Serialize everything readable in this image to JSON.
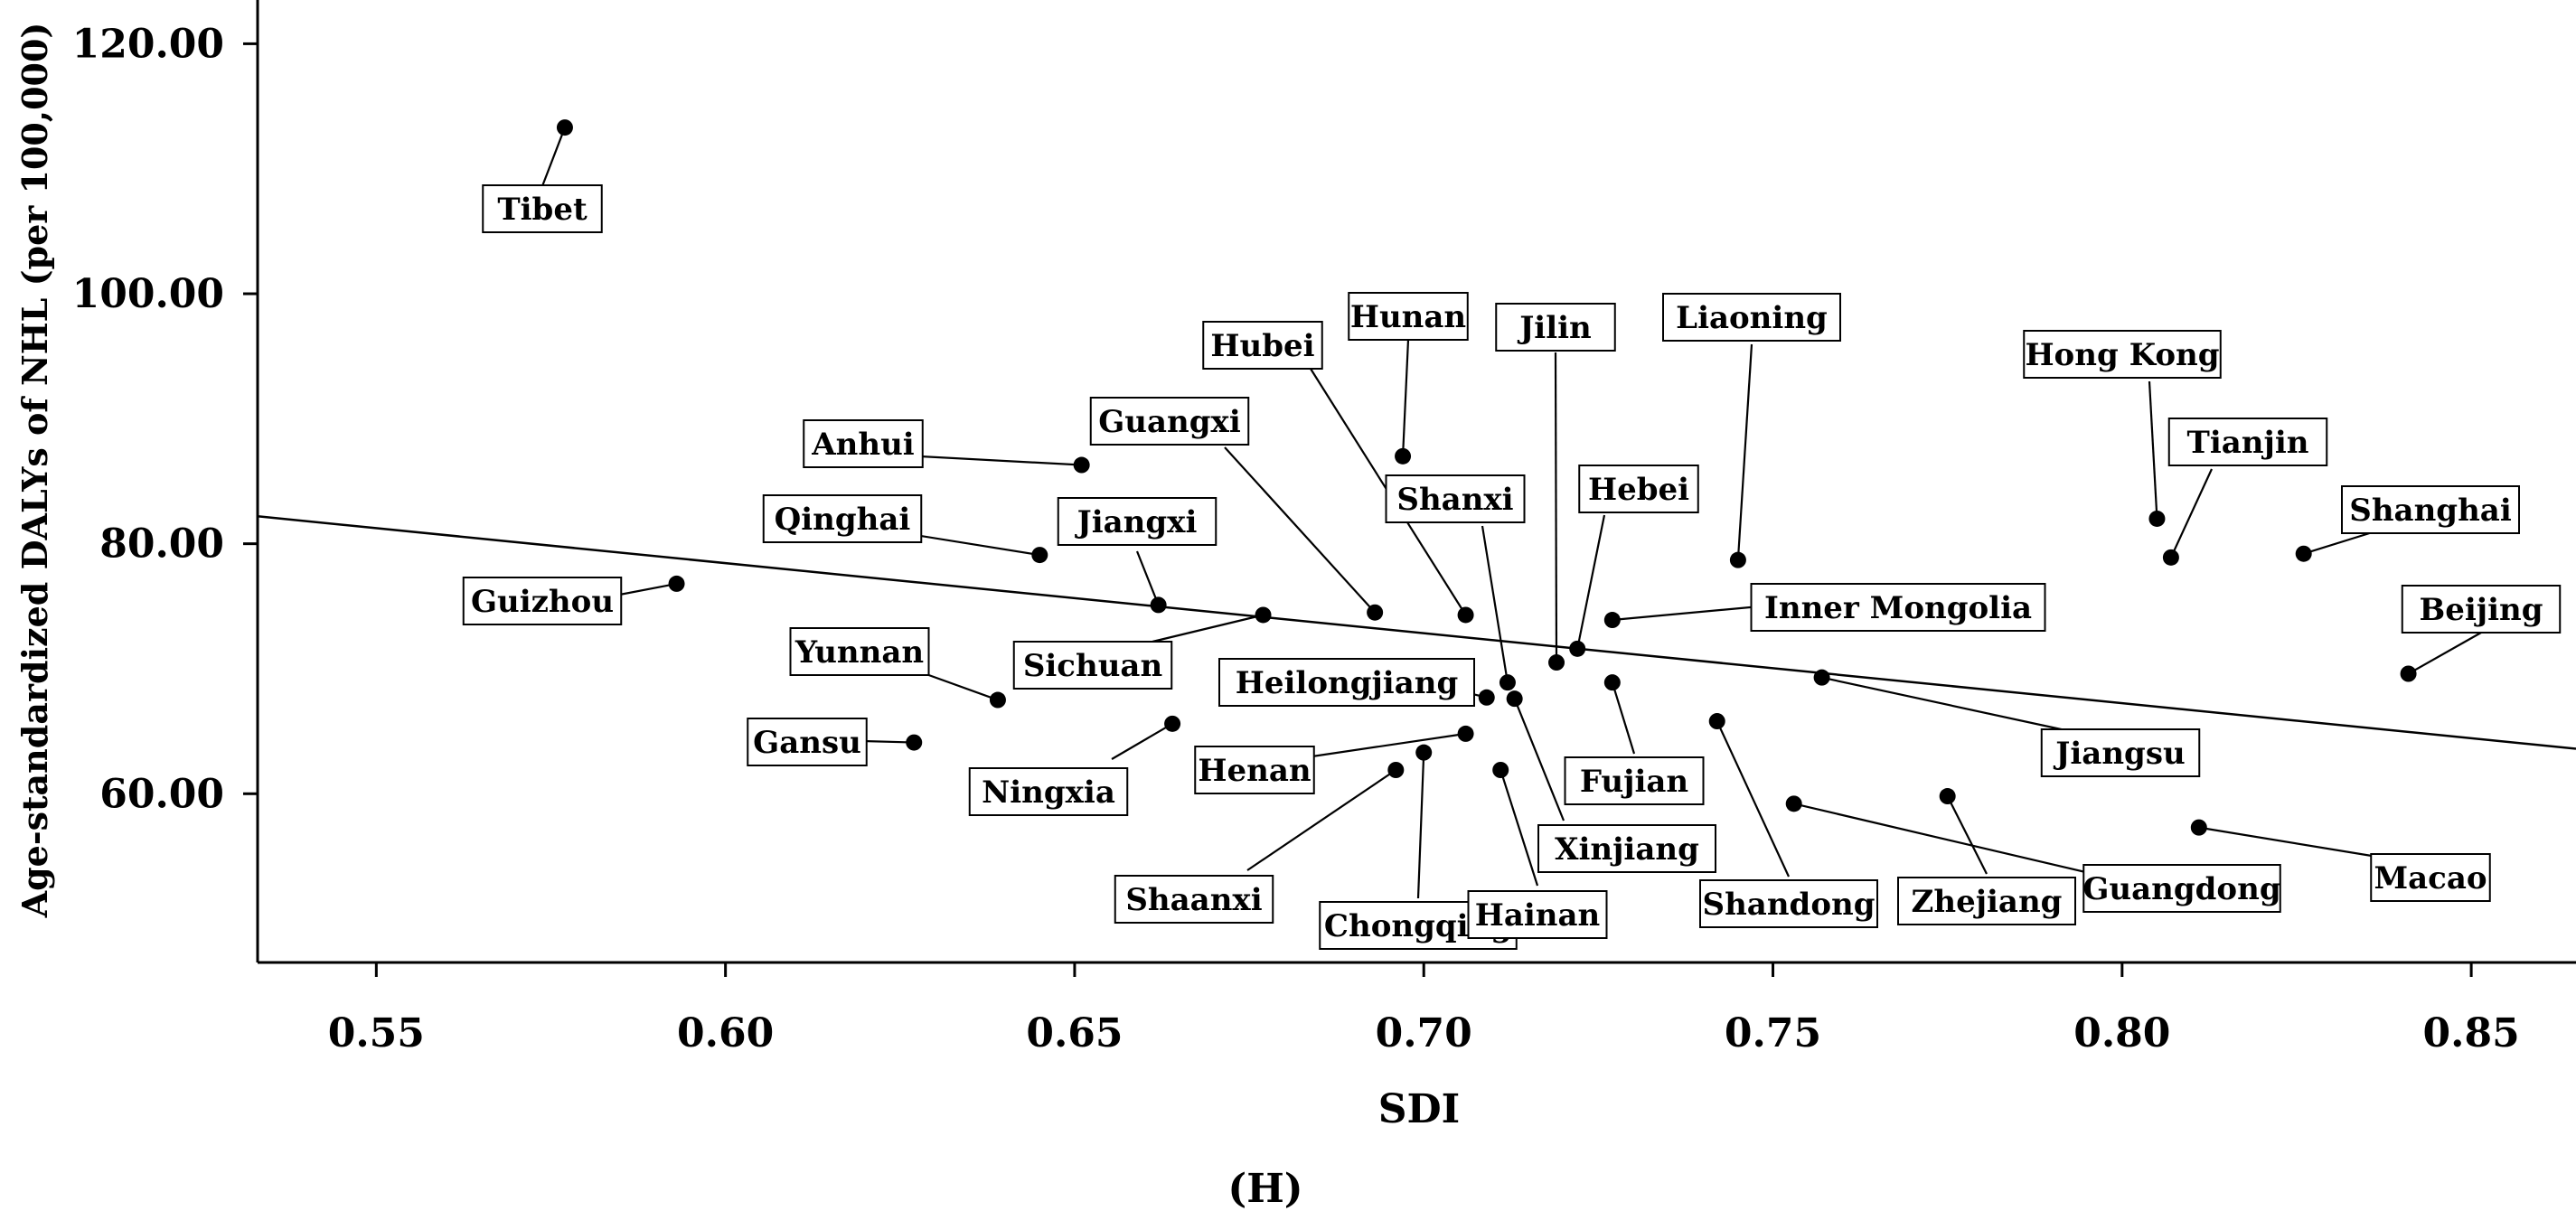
{
  "chart_data": {
    "type": "scatter",
    "panel_label": "(H)",
    "xlabel": "SDI",
    "ylabel": "Age-standardized DALYs of NHL (per 100,000)",
    "xlim": [
      0.533,
      0.865
    ],
    "ylim": [
      46.5,
      123.5
    ],
    "x_ticks": [
      "0.55",
      "0.60",
      "0.65",
      "0.70",
      "0.75",
      "0.80",
      "0.85"
    ],
    "x_tick_values": [
      0.55,
      0.6,
      0.65,
      0.7,
      0.75,
      0.8,
      0.85
    ],
    "y_ticks": [
      "60.00",
      "80.00",
      "100.00",
      "120.00"
    ],
    "y_tick_values": [
      60,
      80,
      100,
      120
    ],
    "fit_line": {
      "x": [
        0.533,
        0.865
      ],
      "y": [
        82.2,
        63.6
      ]
    },
    "points": [
      {
        "name": "Tibet",
        "x": 0.577,
        "y": 113.3
      },
      {
        "name": "Guizhou",
        "x": 0.593,
        "y": 76.8
      },
      {
        "name": "Anhui",
        "x": 0.651,
        "y": 86.3
      },
      {
        "name": "Qinghai",
        "x": 0.645,
        "y": 79.1
      },
      {
        "name": "Yunnan",
        "x": 0.639,
        "y": 67.5
      },
      {
        "name": "Gansu",
        "x": 0.627,
        "y": 64.1
      },
      {
        "name": "Jiangxi",
        "x": 0.662,
        "y": 75.1
      },
      {
        "name": "Sichuan",
        "x": 0.677,
        "y": 74.3
      },
      {
        "name": "Ningxia",
        "x": 0.664,
        "y": 65.6
      },
      {
        "name": "Guangxi",
        "x": 0.693,
        "y": 74.5
      },
      {
        "name": "Hubei",
        "x": 0.706,
        "y": 74.3
      },
      {
        "name": "Hunan",
        "x": 0.697,
        "y": 87.0
      },
      {
        "name": "Shanxi",
        "x": 0.712,
        "y": 68.9
      },
      {
        "name": "Jilin",
        "x": 0.719,
        "y": 70.5
      },
      {
        "name": "Hebei",
        "x": 0.722,
        "y": 71.6
      },
      {
        "name": "Heilongjiang",
        "x": 0.709,
        "y": 67.7
      },
      {
        "name": "Xinjiang",
        "x": 0.713,
        "y": 67.6
      },
      {
        "name": "Henan",
        "x": 0.706,
        "y": 64.8
      },
      {
        "name": "Shaanxi",
        "x": 0.696,
        "y": 61.9
      },
      {
        "name": "Chongqing",
        "x": 0.7,
        "y": 63.3
      },
      {
        "name": "Hainan",
        "x": 0.711,
        "y": 61.9
      },
      {
        "name": "Fujian",
        "x": 0.727,
        "y": 68.9
      },
      {
        "name": "Inner Mongolia",
        "x": 0.727,
        "y": 73.9
      },
      {
        "name": "Liaoning",
        "x": 0.745,
        "y": 78.7
      },
      {
        "name": "Shandong",
        "x": 0.742,
        "y": 65.8
      },
      {
        "name": "Jiangsu",
        "x": 0.757,
        "y": 69.3
      },
      {
        "name": "Zhejiang",
        "x": 0.775,
        "y": 59.8
      },
      {
        "name": "Guangdong",
        "x": 0.753,
        "y": 59.2
      },
      {
        "name": "Hong Kong",
        "x": 0.805,
        "y": 82.0
      },
      {
        "name": "Tianjin",
        "x": 0.807,
        "y": 78.9
      },
      {
        "name": "Shanghai",
        "x": 0.826,
        "y": 79.2
      },
      {
        "name": "Beijing",
        "x": 0.841,
        "y": 69.6
      },
      {
        "name": "Macao",
        "x": 0.811,
        "y": 57.3
      }
    ]
  }
}
